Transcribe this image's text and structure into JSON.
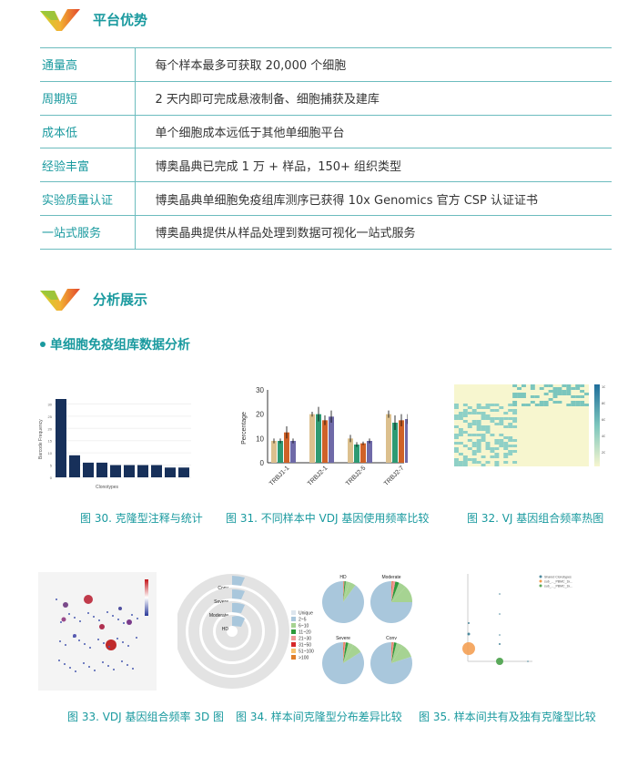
{
  "accent": "#1a9a9f",
  "section1": {
    "title": "平台优势",
    "icon": "brand-v-logo-icon"
  },
  "advantages": [
    {
      "key": "通量高",
      "value": "每个样本最多可获取 20,000 个细胞"
    },
    {
      "key": "周期短",
      "value": "2 天内即可完成悬液制备、细胞捕获及建库"
    },
    {
      "key": "成本低",
      "value": "单个细胞成本远低于其他单细胞平台"
    },
    {
      "key": "经验丰富",
      "value": "博奥晶典已完成 1 万 + 样品，150+ 组织类型"
    },
    {
      "key": "实验质量认证",
      "value": "博奥晶典单细胞免疫组库测序已获得 10x Genomics 官方 CSP 认证证书"
    },
    {
      "key": "一站式服务",
      "value": "博奥晶典提供从样品处理到数据可视化一站式服务"
    }
  ],
  "section2": {
    "title": "分析展示",
    "subtitle": "单细胞免疫组库数据分析"
  },
  "captions": [
    "图 30. 克隆型注释与统计",
    "图 31. 不同样本中 VDJ 基因使用频率比较",
    "图 32. VJ 基因组合频率热图",
    "图 33. VDJ 基因组合频率 3D 图",
    "图 34. 样本间克隆型分布差异比较",
    "图 35. 样本间共有及独有克隆型比较"
  ],
  "chart_data": [
    {
      "type": "bar",
      "xlabel": "Clonotypes",
      "ylabel": "Barcode Frequency",
      "ylim": [
        0,
        32
      ],
      "yticks": [
        0,
        5,
        10,
        15,
        20,
        25,
        30
      ],
      "values": [
        32,
        9,
        6,
        6,
        5,
        5,
        5,
        5,
        4,
        4
      ],
      "color": "#17305a"
    },
    {
      "type": "bar",
      "ylabel": "Percentage",
      "ylim": [
        0,
        30
      ],
      "yticks": [
        0,
        10,
        20,
        30
      ],
      "categories": [
        "TRBJ1-1",
        "TRBJ2-1",
        "TRBJ2-5",
        "TRBJ2-7"
      ],
      "colors": [
        "#dcc08e",
        "#2e9a73",
        "#cf6228",
        "#6f6aa8"
      ],
      "series": [
        {
          "values": [
            9,
            20,
            10,
            20
          ]
        },
        {
          "values": [
            9,
            20,
            7.5,
            16.5
          ]
        },
        {
          "values": [
            12.5,
            17.5,
            8,
            17.5
          ]
        },
        {
          "values": [
            9,
            19,
            9,
            18
          ]
        }
      ],
      "errors": [
        [
          1,
          1,
          1.5,
          1.5
        ],
        [
          1,
          3,
          1,
          3
        ],
        [
          2.5,
          2,
          0.7,
          2.5
        ],
        [
          1,
          2.5,
          1,
          2
        ]
      ]
    },
    {
      "type": "heatmap",
      "colorbar_ticks": [
        100,
        80,
        60,
        40,
        20
      ],
      "colors": [
        "#f7f6cf",
        "#8fd0c6",
        "#2a7fa8"
      ]
    },
    {
      "type": "scatter",
      "note3d": true
    },
    {
      "type": "pie",
      "rings": [
        "Conv",
        "Severe",
        "Moderate",
        "HD"
      ],
      "pies": [
        "HD",
        "Moderate",
        "Severe",
        "Conv"
      ],
      "legend": [
        "Unique",
        "2~5",
        "6~10",
        "11~20",
        "21~30",
        "31~50",
        "51~100",
        ">100"
      ],
      "legend_colors": [
        "#dde6ee",
        "#a9c7dc",
        "#a6d392",
        "#2e9a3c",
        "#f09a99",
        "#d62728",
        "#f7c16e",
        "#e07f2a"
      ],
      "slices": [
        [
          0.9,
          0.05,
          0.03,
          0.01,
          0.005,
          0.003,
          0.001,
          0.001
        ],
        [
          0.75,
          0.13,
          0.06,
          0.03,
          0.02,
          0.005,
          0.003,
          0.002
        ],
        [
          0.84,
          0.08,
          0.04,
          0.02,
          0.01,
          0.005,
          0.003,
          0.002
        ],
        [
          0.8,
          0.11,
          0.05,
          0.02,
          0.01,
          0.005,
          0.003,
          0.002
        ]
      ]
    },
    {
      "type": "scatter",
      "legend": [
        "Shared Clonotypes",
        "sub_..._PBMC_1k...",
        "sub_..._PBMC_1k..."
      ],
      "colors": [
        "#4e8a9e",
        "#f39a4a",
        "#5aa95a"
      ]
    }
  ]
}
